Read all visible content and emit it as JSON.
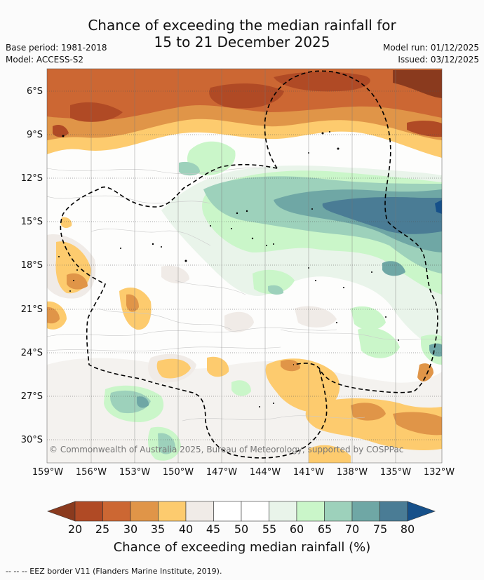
{
  "title": {
    "line1": "Chance of exceeding the median rainfall for",
    "line2": "15 to 21 December 2025"
  },
  "meta": {
    "base_period": "Base period: 1981-2018",
    "model": "Model: ACCESS-S2",
    "model_run": "Model run: 01/12/2025",
    "issued": "Issued: 03/12/2025"
  },
  "map": {
    "lat_labels": [
      "6°S",
      "9°S",
      "12°S",
      "15°S",
      "18°S",
      "21°S",
      "24°S",
      "27°S",
      "30°S"
    ],
    "lon_labels": [
      "159°W",
      "156°W",
      "153°W",
      "150°W",
      "147°W",
      "144°W",
      "141°W",
      "138°W",
      "135°W",
      "132°W"
    ],
    "copyright": "© Commonwealth of Australia 2025, Bureau of Meteorology, supported by COSPPac"
  },
  "colorbar": {
    "ticks": [
      "20",
      "25",
      "30",
      "35",
      "40",
      "45",
      "50",
      "55",
      "60",
      "65",
      "70",
      "75",
      "80"
    ],
    "colors": [
      "#8a3a1e",
      "#b04a25",
      "#cc6733",
      "#e09548",
      "#fdcb6e",
      "#f0ebe7",
      "#ffffff",
      "#ffffff",
      "#e9f4ea",
      "#caf6c9",
      "#9dd1bb",
      "#6fa7a5",
      "#4a7c95",
      "#16508a"
    ],
    "title": "Chance of exceeding median rainfall (%)"
  },
  "footnote": "--  --  -- EEZ border V11 (Flanders Marine Institute, 2019)."
}
